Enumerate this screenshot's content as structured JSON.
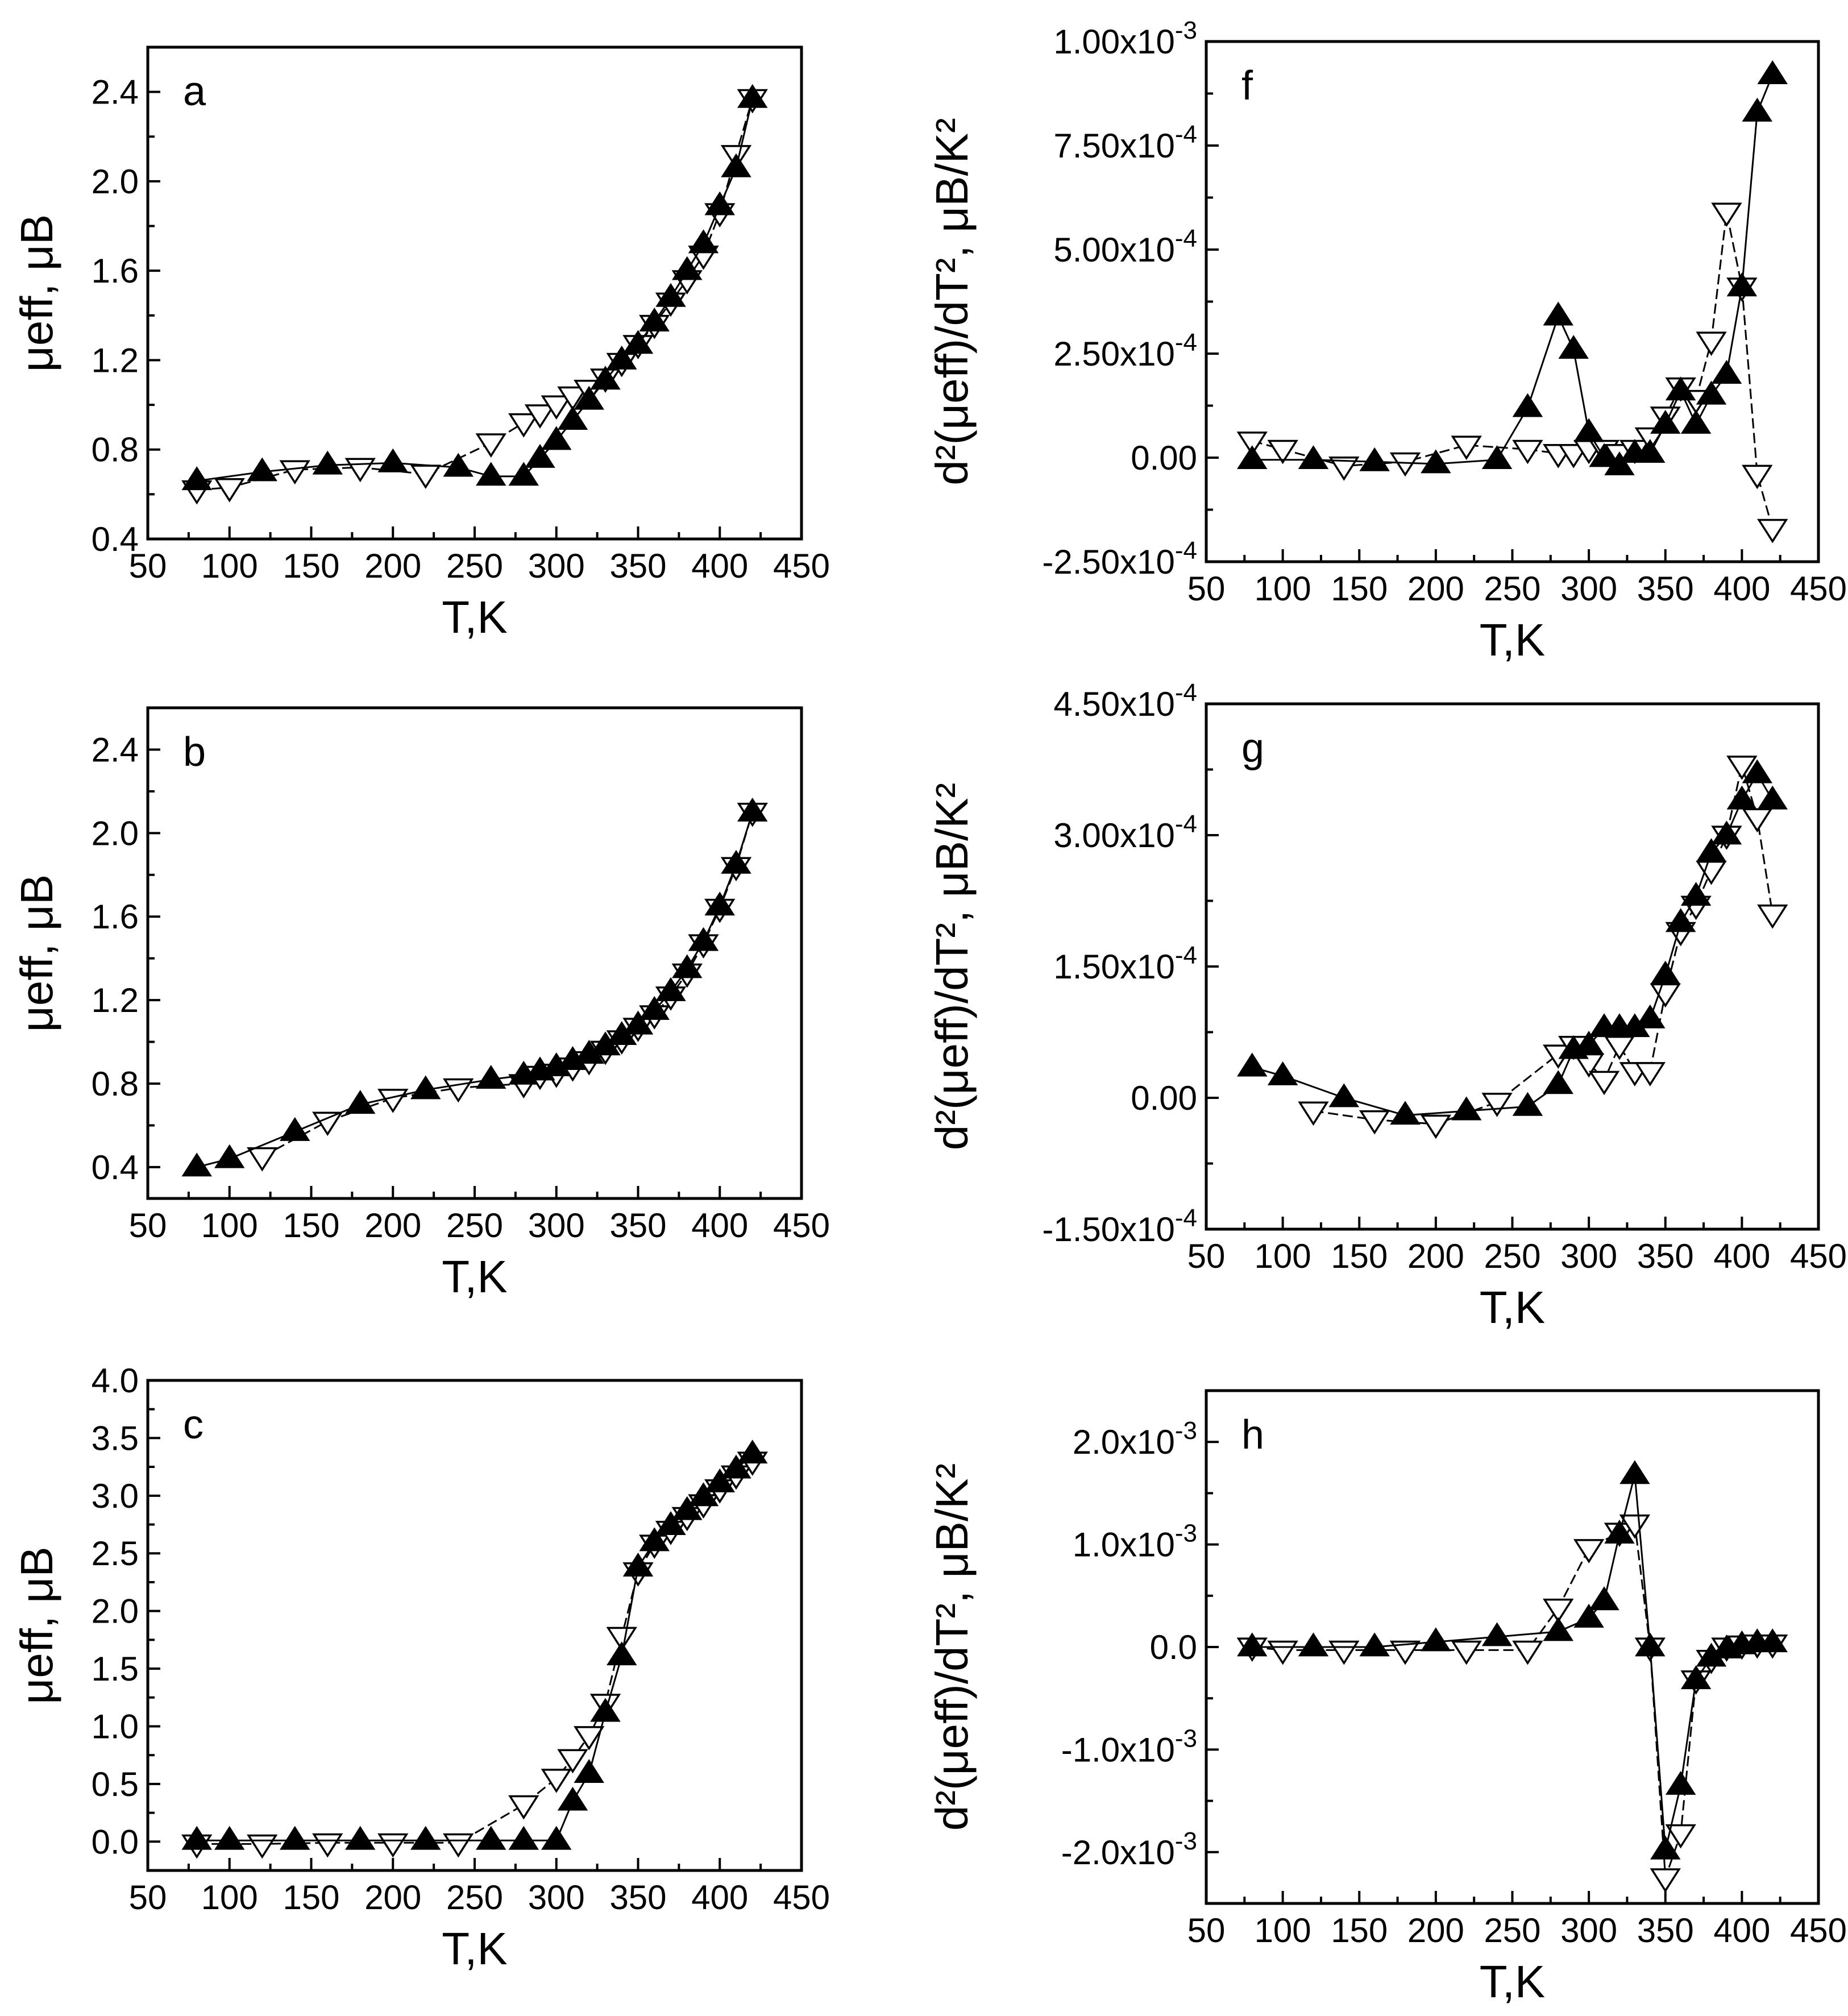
{
  "figure": {
    "background": "#ffffff",
    "ink": "#000000"
  },
  "chart_data": [
    {
      "id": "a",
      "type": "scatter",
      "panel_label": "a",
      "xlabel": "T,K",
      "ylabel": "μeff, μB",
      "xlim": [
        50,
        450
      ],
      "ylim": [
        0.4,
        2.6
      ],
      "xticks": [
        "50",
        "100",
        "150",
        "200",
        "250",
        "300",
        "350",
        "400",
        "450"
      ],
      "yticks": [
        "0.4",
        "0.8",
        "1.2",
        "1.6",
        "2.0",
        "2.4"
      ],
      "series": [
        {
          "name": "open-triangle-down",
          "marker": "open-down",
          "x": [
            80,
            100,
            140,
            180,
            220,
            260,
            280,
            290,
            300,
            310,
            320,
            330,
            340,
            350,
            360,
            370,
            380,
            390,
            400,
            410,
            420
          ],
          "y": [
            0.62,
            0.63,
            0.71,
            0.72,
            0.69,
            0.83,
            0.92,
            0.96,
            1.0,
            1.04,
            1.07,
            1.12,
            1.19,
            1.27,
            1.36,
            1.46,
            1.56,
            1.67,
            1.86,
            2.12,
            2.37
          ]
        },
        {
          "name": "filled-triangle-up",
          "marker": "filled-up",
          "x": [
            80,
            120,
            160,
            200,
            240,
            260,
            280,
            290,
            300,
            310,
            320,
            330,
            340,
            350,
            360,
            370,
            380,
            390,
            400,
            410,
            420
          ],
          "y": [
            0.66,
            0.7,
            0.73,
            0.74,
            0.72,
            0.68,
            0.68,
            0.76,
            0.84,
            0.93,
            1.02,
            1.11,
            1.2,
            1.27,
            1.37,
            1.48,
            1.6,
            1.72,
            1.89,
            2.06,
            2.37
          ]
        }
      ]
    },
    {
      "id": "b",
      "type": "scatter",
      "panel_label": "b",
      "xlabel": "T,K",
      "ylabel": "μeff, μB",
      "xlim": [
        50,
        450
      ],
      "ylim": [
        0.25,
        2.6
      ],
      "xticks": [
        "50",
        "100",
        "150",
        "200",
        "250",
        "300",
        "350",
        "400",
        "450"
      ],
      "yticks": [
        "0.4",
        "0.8",
        "1.2",
        "1.6",
        "2.0",
        "2.4"
      ],
      "series": [
        {
          "name": "open-triangle-down",
          "marker": "open-down",
          "x": [
            120,
            160,
            200,
            240,
            280,
            290,
            300,
            310,
            320,
            330,
            340,
            350,
            360,
            370,
            380,
            390,
            400,
            410,
            420
          ],
          "y": [
            0.45,
            0.62,
            0.73,
            0.78,
            0.8,
            0.84,
            0.85,
            0.88,
            0.91,
            0.96,
            1.01,
            1.07,
            1.13,
            1.22,
            1.33,
            1.47,
            1.64,
            1.84,
            2.1
          ]
        },
        {
          "name": "filled-triangle-up",
          "marker": "filled-up",
          "x": [
            80,
            100,
            140,
            180,
            220,
            260,
            280,
            290,
            300,
            310,
            320,
            330,
            340,
            350,
            360,
            370,
            380,
            390,
            400,
            410,
            420
          ],
          "y": [
            0.4,
            0.44,
            0.57,
            0.7,
            0.77,
            0.82,
            0.84,
            0.86,
            0.88,
            0.91,
            0.94,
            0.98,
            1.03,
            1.08,
            1.15,
            1.24,
            1.35,
            1.48,
            1.65,
            1.85,
            2.1
          ]
        }
      ]
    },
    {
      "id": "c",
      "type": "scatter",
      "panel_label": "c",
      "xlabel": "T,K",
      "ylabel": "μeff, μB",
      "xlim": [
        50,
        450
      ],
      "ylim": [
        -0.25,
        4.0
      ],
      "xticks": [
        "50",
        "100",
        "150",
        "200",
        "250",
        "300",
        "350",
        "400",
        "450"
      ],
      "yticks": [
        "0.0",
        "0.5",
        "1.0",
        "1.5",
        "2.0",
        "2.5",
        "3.0",
        "3.5",
        "4.0"
      ],
      "series": [
        {
          "name": "open-triangle-down",
          "marker": "open-down",
          "x": [
            80,
            120,
            160,
            200,
            240,
            280,
            300,
            310,
            320,
            330,
            340,
            350,
            360,
            370,
            380,
            390,
            400,
            410,
            420
          ],
          "y": [
            -0.02,
            -0.02,
            -0.01,
            -0.01,
            -0.01,
            0.32,
            0.55,
            0.72,
            0.92,
            1.2,
            1.78,
            2.34,
            2.58,
            2.7,
            2.82,
            2.93,
            3.06,
            3.18,
            3.3
          ]
        },
        {
          "name": "filled-triangle-up",
          "marker": "filled-up",
          "x": [
            80,
            100,
            140,
            180,
            220,
            260,
            280,
            300,
            310,
            320,
            330,
            340,
            350,
            360,
            370,
            380,
            390,
            400,
            410,
            420
          ],
          "y": [
            0.01,
            0.01,
            0.01,
            0.01,
            0.01,
            0.01,
            0.01,
            0.01,
            0.35,
            0.59,
            1.12,
            1.61,
            2.38,
            2.6,
            2.74,
            2.87,
            2.99,
            3.11,
            3.23,
            3.36
          ]
        }
      ]
    },
    {
      "id": "f",
      "type": "scatter",
      "panel_label": "f",
      "xlabel": "T,K",
      "ylabel": "d²(μeff)/dT², μB/K²",
      "xlim": [
        50,
        450
      ],
      "ylim": [
        -0.00025,
        0.001
      ],
      "xticks": [
        "50",
        "100",
        "150",
        "200",
        "250",
        "300",
        "350",
        "400",
        "450"
      ],
      "yticks": [
        "-2.50x10-4",
        "0.00",
        "2.50x10-4",
        "5.00x10-4",
        "7.50x10-4",
        "1.00x10-3"
      ],
      "series": [
        {
          "name": "open-triangle-down",
          "marker": "open-down",
          "x": [
            80,
            100,
            140,
            180,
            220,
            260,
            280,
            290,
            300,
            310,
            320,
            330,
            340,
            350,
            360,
            370,
            380,
            390,
            400,
            410,
            420
          ],
          "y": [
            4e-05,
            2e-05,
            -2e-05,
            -1e-05,
            3e-05,
            2e-05,
            1e-05,
            1e-05,
            2e-05,
            2e-05,
            1e-05,
            2e-05,
            5e-05,
            0.0001,
            0.00017,
            0.00014,
            0.00028,
            0.00059,
            0.00041,
            -4e-05,
            -0.00017
          ]
        },
        {
          "name": "filled-triangle-up",
          "marker": "filled-up",
          "x": [
            80,
            120,
            160,
            200,
            240,
            260,
            280,
            290,
            300,
            310,
            320,
            330,
            340,
            350,
            360,
            370,
            380,
            390,
            400,
            410,
            420
          ],
          "y": [
            -5e-06,
            -5e-06,
            -1e-05,
            -1.5e-05,
            -5e-06,
            0.00012,
            0.00034,
            0.00026,
            6e-05,
            0.0,
            -2e-05,
            1e-05,
            1e-05,
            8e-05,
            0.00016,
            8e-05,
            0.00015,
            0.0002,
            0.00041,
            0.00083,
            0.00092
          ]
        }
      ]
    },
    {
      "id": "g",
      "type": "scatter",
      "panel_label": "g",
      "xlabel": "T,K",
      "ylabel": "d²(μeff)/dT², μB/K²",
      "xlim": [
        50,
        450
      ],
      "ylim": [
        -0.00015,
        0.00045
      ],
      "xticks": [
        "50",
        "100",
        "150",
        "200",
        "250",
        "300",
        "350",
        "400",
        "450"
      ],
      "yticks": [
        "-1.50x10-4",
        "0.00",
        "1.50x10-4",
        "3.00x10-4",
        "4.50x10-4"
      ],
      "series": [
        {
          "name": "open-triangle-down",
          "marker": "open-down",
          "x": [
            120,
            160,
            200,
            240,
            280,
            290,
            300,
            310,
            320,
            330,
            340,
            350,
            360,
            370,
            380,
            390,
            400,
            410,
            420
          ],
          "y": [
            -1.5e-05,
            -2.5e-05,
            -3e-05,
            -5e-06,
            5e-05,
            6e-05,
            4e-05,
            2e-05,
            6e-05,
            3e-05,
            3e-05,
            0.00012,
            0.00019,
            0.00022,
            0.00026,
            0.0003,
            0.00038,
            0.00032,
            0.00021
          ]
        },
        {
          "name": "filled-triangle-up",
          "marker": "filled-up",
          "x": [
            80,
            100,
            140,
            180,
            220,
            260,
            280,
            290,
            300,
            310,
            320,
            330,
            340,
            350,
            360,
            370,
            380,
            390,
            400,
            410,
            420
          ],
          "y": [
            3.5e-05,
            2.5e-05,
            0.0,
            -2e-05,
            -1.5e-05,
            -1e-05,
            1.5e-05,
            5.5e-05,
            6e-05,
            8e-05,
            8e-05,
            8e-05,
            9e-05,
            0.00014,
            0.0002,
            0.00023,
            0.00028,
            0.0003,
            0.00034,
            0.00037,
            0.00034
          ]
        }
      ]
    },
    {
      "id": "h",
      "type": "scatter",
      "panel_label": "h",
      "xlabel": "T,K",
      "ylabel": "d²(μeff)/dT², μB/K²",
      "xlim": [
        50,
        450
      ],
      "ylim": [
        -0.0025,
        0.0025
      ],
      "xticks": [
        "50",
        "100",
        "150",
        "200",
        "250",
        "300",
        "350",
        "400",
        "450"
      ],
      "yticks": [
        "-2.0x10-3",
        "-1.0x10-3",
        "0.0",
        "1.0x10-3",
        "2.0x10-3"
      ],
      "series": [
        {
          "name": "open-triangle-down",
          "marker": "open-down",
          "x": [
            80,
            100,
            140,
            180,
            220,
            260,
            280,
            300,
            320,
            330,
            340,
            350,
            360,
            370,
            380,
            390,
            400,
            410,
            420
          ],
          "y": [
            0.0,
            -3e-05,
            -3e-05,
            -3e-05,
            -3e-05,
            -3e-05,
            0.00038,
            0.00096,
            0.00112,
            0.0012,
            0.0,
            -0.00225,
            -0.00182,
            -0.00032,
            -0.00012,
            0.0,
            2e-05,
            3e-05,
            3e-05
          ]
        },
        {
          "name": "filled-triangle-up",
          "marker": "filled-up",
          "x": [
            80,
            120,
            160,
            200,
            240,
            280,
            300,
            310,
            320,
            330,
            340,
            350,
            360,
            370,
            380,
            390,
            400,
            410,
            420
          ],
          "y": [
            0.0,
            0.0,
            0.0,
            5e-05,
            0.0001,
            0.00015,
            0.00028,
            0.00045,
            0.0011,
            0.00168,
            0.0,
            -0.00198,
            -0.00135,
            -0.00032,
            -0.0001,
            -2e-05,
            2e-05,
            4e-05,
            4e-05
          ]
        }
      ]
    }
  ]
}
